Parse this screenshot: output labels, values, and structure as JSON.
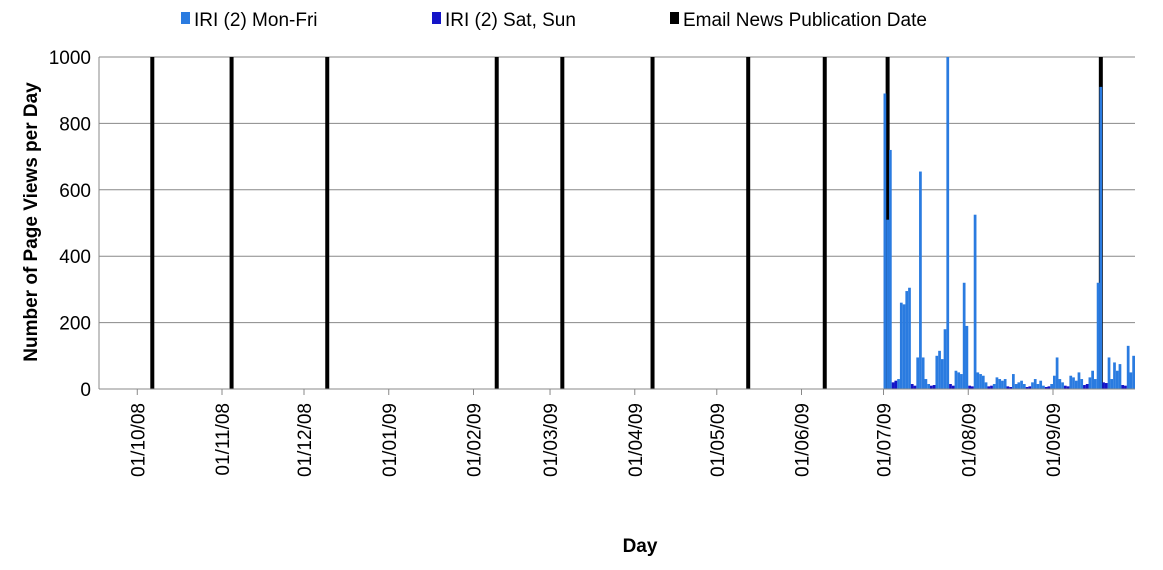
{
  "chart_data": {
    "type": "bar",
    "xlabel": "Day",
    "ylabel": "Number of Page Views per Day",
    "ylim": [
      0,
      1000
    ],
    "y_ticks": [
      0,
      200,
      400,
      600,
      800,
      1000
    ],
    "xlim": [
      "2008-09-17",
      "2009-09-30"
    ],
    "x_ticks": [
      {
        "date": "2008-10-01",
        "label": "01/10/08"
      },
      {
        "date": "2008-11-01",
        "label": "01/11/08"
      },
      {
        "date": "2008-12-01",
        "label": "01/12/08"
      },
      {
        "date": "2009-01-01",
        "label": "01/01/09"
      },
      {
        "date": "2009-02-01",
        "label": "01/02/09"
      },
      {
        "date": "2009-03-01",
        "label": "01/03/09"
      },
      {
        "date": "2009-04-01",
        "label": "01/04/09"
      },
      {
        "date": "2009-05-01",
        "label": "01/05/09"
      },
      {
        "date": "2009-06-01",
        "label": "01/06/09"
      },
      {
        "date": "2009-07-01",
        "label": "01/07/09"
      },
      {
        "date": "2009-08-01",
        "label": "01/08/09"
      },
      {
        "date": "2009-09-01",
        "label": "01/09/09"
      }
    ],
    "grid": true,
    "legend_position": "top",
    "colors": {
      "weekday": "#2a7be0",
      "weekend": "#1414c8",
      "email": "#000000",
      "grid": "#888888"
    },
    "series": [
      {
        "name": "IRI (2) Mon-Fri",
        "points": [
          {
            "x": "2009-07-01",
            "y": 890
          },
          {
            "x": "2009-07-02",
            "y": 510
          },
          {
            "x": "2009-07-03",
            "y": 720
          },
          {
            "x": "2009-07-06",
            "y": 30
          },
          {
            "x": "2009-07-07",
            "y": 260
          },
          {
            "x": "2009-07-08",
            "y": 255
          },
          {
            "x": "2009-07-09",
            "y": 295
          },
          {
            "x": "2009-07-10",
            "y": 305
          },
          {
            "x": "2009-07-13",
            "y": 95
          },
          {
            "x": "2009-07-14",
            "y": 655
          },
          {
            "x": "2009-07-15",
            "y": 95
          },
          {
            "x": "2009-07-16",
            "y": 30
          },
          {
            "x": "2009-07-17",
            "y": 15
          },
          {
            "x": "2009-07-20",
            "y": 100
          },
          {
            "x": "2009-07-21",
            "y": 115
          },
          {
            "x": "2009-07-22",
            "y": 90
          },
          {
            "x": "2009-07-23",
            "y": 180
          },
          {
            "x": "2009-07-24",
            "y": 1000
          },
          {
            "x": "2009-07-27",
            "y": 55
          },
          {
            "x": "2009-07-28",
            "y": 50
          },
          {
            "x": "2009-07-29",
            "y": 45
          },
          {
            "x": "2009-07-30",
            "y": 320
          },
          {
            "x": "2009-07-31",
            "y": 190
          },
          {
            "x": "2009-08-03",
            "y": 525
          },
          {
            "x": "2009-08-04",
            "y": 50
          },
          {
            "x": "2009-08-05",
            "y": 45
          },
          {
            "x": "2009-08-06",
            "y": 40
          },
          {
            "x": "2009-08-07",
            "y": 20
          },
          {
            "x": "2009-08-10",
            "y": 15
          },
          {
            "x": "2009-08-11",
            "y": 35
          },
          {
            "x": "2009-08-12",
            "y": 30
          },
          {
            "x": "2009-08-13",
            "y": 25
          },
          {
            "x": "2009-08-14",
            "y": 30
          },
          {
            "x": "2009-08-17",
            "y": 45
          },
          {
            "x": "2009-08-18",
            "y": 15
          },
          {
            "x": "2009-08-19",
            "y": 20
          },
          {
            "x": "2009-08-20",
            "y": 25
          },
          {
            "x": "2009-08-21",
            "y": 15
          },
          {
            "x": "2009-08-24",
            "y": 20
          },
          {
            "x": "2009-08-25",
            "y": 30
          },
          {
            "x": "2009-08-26",
            "y": 15
          },
          {
            "x": "2009-08-27",
            "y": 25
          },
          {
            "x": "2009-08-28",
            "y": 10
          },
          {
            "x": "2009-08-31",
            "y": 15
          },
          {
            "x": "2009-09-01",
            "y": 40
          },
          {
            "x": "2009-09-02",
            "y": 95
          },
          {
            "x": "2009-09-03",
            "y": 30
          },
          {
            "x": "2009-09-04",
            "y": 20
          },
          {
            "x": "2009-09-07",
            "y": 40
          },
          {
            "x": "2009-09-08",
            "y": 35
          },
          {
            "x": "2009-09-09",
            "y": 25
          },
          {
            "x": "2009-09-10",
            "y": 50
          },
          {
            "x": "2009-09-11",
            "y": 30
          },
          {
            "x": "2009-09-14",
            "y": 35
          },
          {
            "x": "2009-09-15",
            "y": 55
          },
          {
            "x": "2009-09-16",
            "y": 30
          },
          {
            "x": "2009-09-17",
            "y": 320
          },
          {
            "x": "2009-09-18",
            "y": 910
          },
          {
            "x": "2009-09-21",
            "y": 95
          },
          {
            "x": "2009-09-22",
            "y": 30
          },
          {
            "x": "2009-09-23",
            "y": 80
          },
          {
            "x": "2009-09-24",
            "y": 55
          },
          {
            "x": "2009-09-25",
            "y": 75
          },
          {
            "x": "2009-09-28",
            "y": 130
          },
          {
            "x": "2009-09-29",
            "y": 50
          },
          {
            "x": "2009-09-30",
            "y": 100
          }
        ]
      },
      {
        "name": "IRI (2) Sat, Sun",
        "points": [
          {
            "x": "2009-07-04",
            "y": 20
          },
          {
            "x": "2009-07-05",
            "y": 25
          },
          {
            "x": "2009-07-11",
            "y": 15
          },
          {
            "x": "2009-07-12",
            "y": 10
          },
          {
            "x": "2009-07-18",
            "y": 10
          },
          {
            "x": "2009-07-19",
            "y": 12
          },
          {
            "x": "2009-07-25",
            "y": 15
          },
          {
            "x": "2009-07-26",
            "y": 10
          },
          {
            "x": "2009-08-01",
            "y": 10
          },
          {
            "x": "2009-08-02",
            "y": 8
          },
          {
            "x": "2009-08-08",
            "y": 8
          },
          {
            "x": "2009-08-09",
            "y": 10
          },
          {
            "x": "2009-08-15",
            "y": 8
          },
          {
            "x": "2009-08-16",
            "y": 6
          },
          {
            "x": "2009-08-22",
            "y": 6
          },
          {
            "x": "2009-08-23",
            "y": 8
          },
          {
            "x": "2009-08-29",
            "y": 6
          },
          {
            "x": "2009-08-30",
            "y": 8
          },
          {
            "x": "2009-09-05",
            "y": 10
          },
          {
            "x": "2009-09-06",
            "y": 8
          },
          {
            "x": "2009-09-12",
            "y": 12
          },
          {
            "x": "2009-09-13",
            "y": 15
          },
          {
            "x": "2009-09-19",
            "y": 20
          },
          {
            "x": "2009-09-20",
            "y": 18
          },
          {
            "x": "2009-09-26",
            "y": 12
          },
          {
            "x": "2009-09-27",
            "y": 10
          }
        ]
      },
      {
        "name": "Email News Publication Date",
        "dates": [
          "2008-10-06",
          "2008-11-04",
          "2008-12-09",
          "2009-02-09",
          "2009-03-05",
          "2009-04-07",
          "2009-05-12",
          "2009-06-09",
          "2009-07-02",
          "2009-09-18"
        ]
      }
    ]
  }
}
